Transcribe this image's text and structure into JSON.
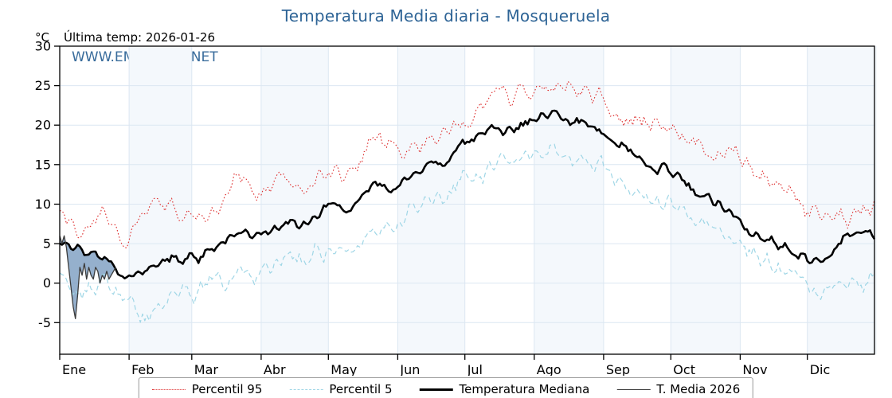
{
  "header": {
    "title": "Temperatura Media diaria - Mosqueruela",
    "subtitle_left": "Última temp: 2026-01-26",
    "y_unit": "°C",
    "watermark": "WWW.EMBALSES.NET"
  },
  "colors": {
    "accent": "#2e6496",
    "grid": "#dce7f2",
    "band": "#f4f8fc",
    "frame": "#000000",
    "fill_2026": "#7b9cc0"
  },
  "chart_data": {
    "type": "line",
    "title": "Temperatura Media diaria - Mosqueruela",
    "xlabel": "",
    "ylabel": "°C",
    "ylim": [
      -9,
      30
    ],
    "yticks": [
      -5,
      0,
      5,
      10,
      15,
      20,
      25,
      30
    ],
    "grid": true,
    "legend_position": "bottom",
    "x_months": [
      "Ene",
      "Feb",
      "Mar",
      "Abr",
      "May",
      "Jun",
      "Jul",
      "Ago",
      "Sep",
      "Oct",
      "Nov",
      "Dic"
    ],
    "month_start_days": [
      1,
      32,
      60,
      91,
      121,
      152,
      182,
      213,
      244,
      274,
      305,
      335
    ],
    "anchor_days": [
      1,
      11,
      21,
      31,
      41,
      51,
      61,
      71,
      81,
      91,
      101,
      111,
      121,
      131,
      141,
      151,
      161,
      171,
      181,
      191,
      201,
      211,
      221,
      231,
      241,
      251,
      261,
      271,
      281,
      291,
      301,
      311,
      321,
      331,
      341,
      351,
      361
    ],
    "series": [
      {
        "name": "Percentil 95",
        "style": "dotted",
        "color": "#dd2c2c",
        "width": 1.1,
        "noise": 1.5,
        "values": [
          9.5,
          6.5,
          9,
          4.5,
          9.5,
          10,
          8,
          9,
          13.5,
          11,
          13,
          12,
          15,
          13.5,
          18.5,
          16,
          18,
          19.5,
          21,
          23,
          23.5,
          24,
          25,
          24.5,
          23.5,
          21,
          20.5,
          20,
          18.5,
          17,
          16.5,
          14,
          12.5,
          10,
          9,
          8.5,
          9.5
        ]
      },
      {
        "name": "Percentil 5",
        "style": "dashed",
        "color": "#9fd6e6",
        "width": 1.2,
        "noise": 1.5,
        "values": [
          0.5,
          -1,
          0,
          -3,
          -4.5,
          -1.5,
          -1,
          0.5,
          1,
          0.5,
          3,
          2.5,
          5,
          4,
          7.5,
          7,
          9.5,
          11,
          13,
          14.5,
          15.5,
          16.5,
          17,
          16,
          15,
          13,
          11.5,
          10,
          8.5,
          7,
          5.5,
          3.5,
          2,
          0.5,
          -1.5,
          -0.5,
          0.5
        ]
      },
      {
        "name": "Temperatura Mediana",
        "style": "solid",
        "color": "#000000",
        "width": 2.6,
        "noise": 0.9,
        "values": [
          5.5,
          4.5,
          3,
          1,
          2.5,
          3.5,
          3,
          4.5,
          6.5,
          5.5,
          7.5,
          7,
          9.5,
          9,
          12.5,
          12,
          14,
          15.5,
          17.5,
          19,
          19.5,
          20.5,
          21.5,
          20.5,
          19.5,
          17.5,
          15.5,
          14.5,
          12.5,
          10.5,
          9,
          6.5,
          5,
          4,
          2,
          5.5,
          6
        ]
      }
    ],
    "series_2026": {
      "name": "T. Media 2026",
      "style": "solid",
      "color": "#3b3b3b",
      "width": 1.3,
      "days": [
        1,
        2,
        3,
        4,
        5,
        6,
        7,
        8,
        9,
        10,
        11,
        12,
        13,
        14,
        15,
        16,
        17,
        18,
        19,
        20,
        21,
        22,
        23,
        24,
        25,
        26
      ],
      "values": [
        6,
        5,
        6,
        4.5,
        2,
        -0.5,
        -3,
        -4.5,
        -1.5,
        2,
        1,
        2.5,
        0.5,
        2,
        1,
        0.5,
        2,
        1.5,
        0,
        1,
        0.5,
        1.5,
        0.5,
        1,
        1.5,
        2
      ]
    }
  },
  "legend": {
    "items": [
      {
        "label": "Percentil 95"
      },
      {
        "label": "Percentil 5"
      },
      {
        "label": "Temperatura Mediana"
      },
      {
        "label": "T. Media 2026"
      }
    ]
  }
}
